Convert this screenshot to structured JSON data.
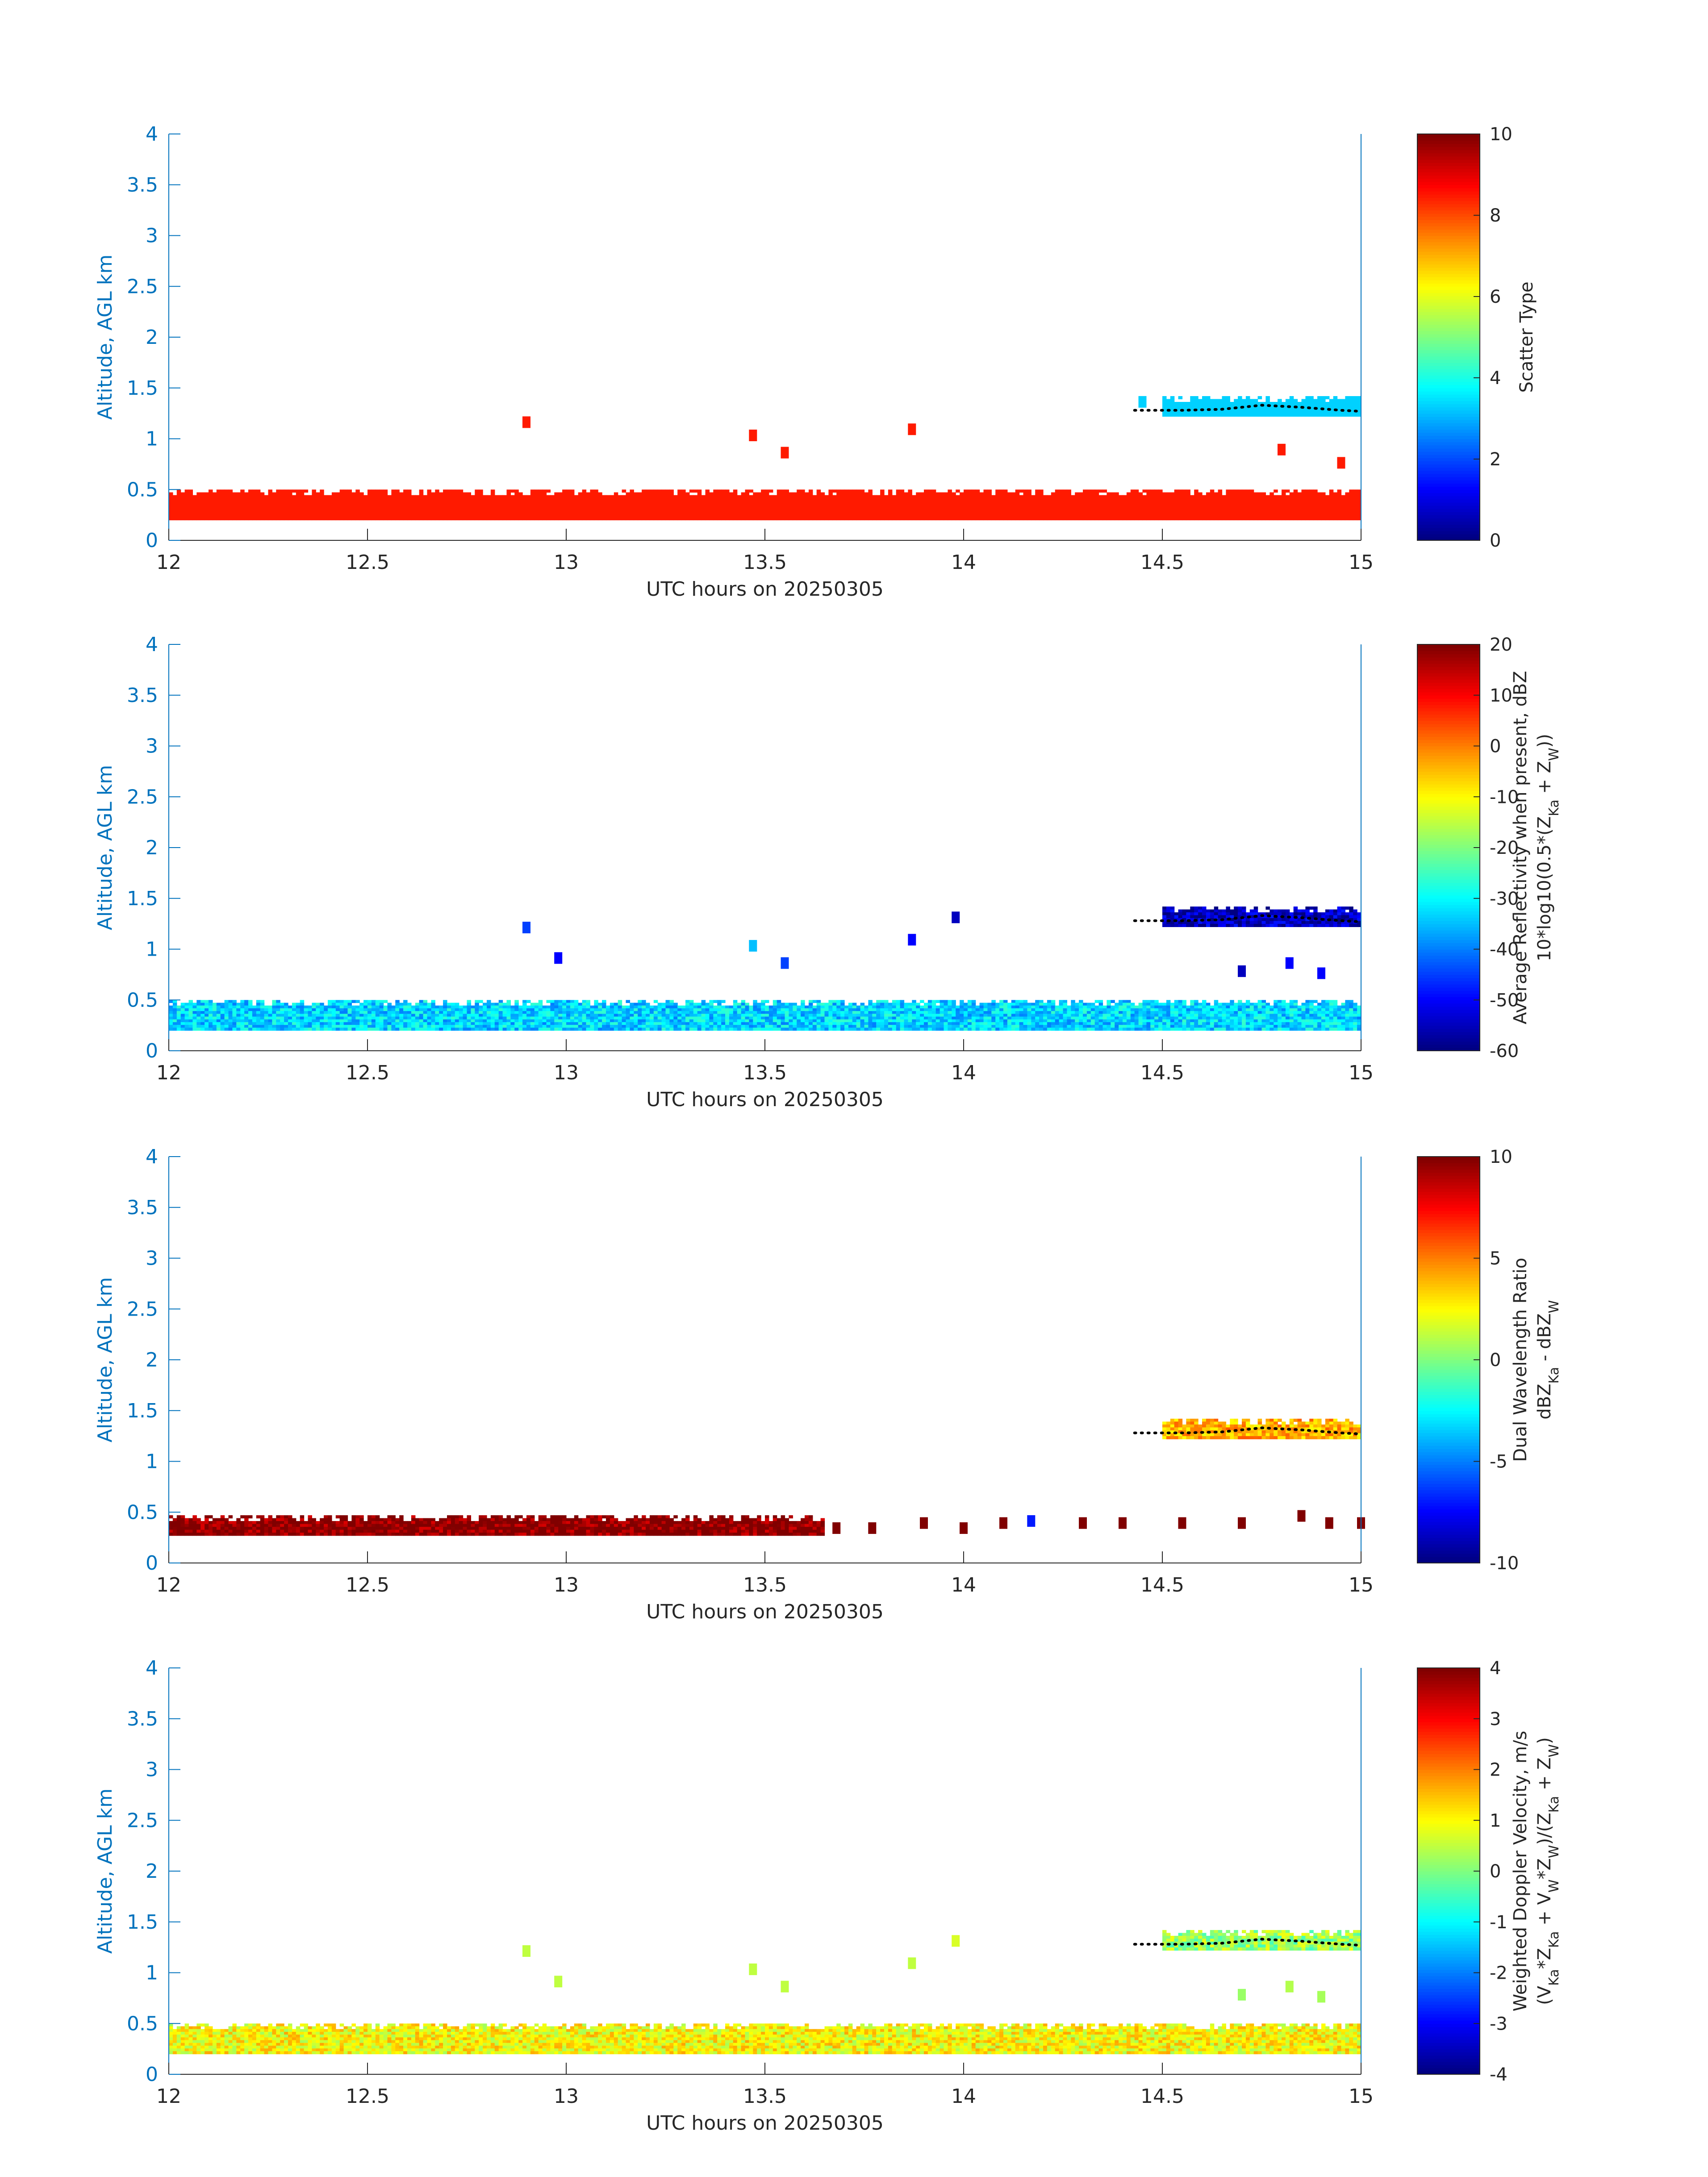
{
  "chart_data": [
    {
      "type": "heatmap",
      "xlabel": "UTC hours on 20250305",
      "ylabel": "Altitude, AGL km",
      "xlim": [
        12,
        15
      ],
      "ylim": [
        0,
        4
      ],
      "xticks": [
        "12",
        "12.5",
        "13",
        "13.5",
        "14",
        "14.5",
        "15"
      ],
      "yticks": [
        "0",
        "0.5",
        "1",
        "1.5",
        "2",
        "2.5",
        "3",
        "3.5",
        "4"
      ],
      "colorbar": {
        "label_lines": [
          "Scatter Type"
        ],
        "range": [
          0,
          10
        ],
        "ticks": [
          "0",
          "2",
          "4",
          "6",
          "8",
          "10"
        ],
        "colormap": "jet"
      },
      "layers": [
        {
          "x0": 12.0,
          "x1": 15.0,
          "y0": 0.2,
          "y1": 0.5,
          "value": 8.5
        },
        {
          "x0": 14.5,
          "x1": 15.0,
          "y0": 1.22,
          "y1": 1.42,
          "value": 3.3
        }
      ],
      "patches": [
        {
          "x": 12.9,
          "y": 1.15,
          "value": 8.5
        },
        {
          "x": 13.47,
          "y": 1.02,
          "value": 8.5
        },
        {
          "x": 13.55,
          "y": 0.85,
          "value": 8.5
        },
        {
          "x": 13.87,
          "y": 1.08,
          "value": 8.5
        },
        {
          "x": 14.45,
          "y": 1.35,
          "value": 3.3
        },
        {
          "x": 14.8,
          "y": 0.88,
          "value": 8.5
        },
        {
          "x": 14.95,
          "y": 0.75,
          "value": 8.5
        }
      ],
      "cloud_base_trace": {
        "x": [
          14.43,
          14.47,
          14.55,
          14.65,
          14.75,
          14.85,
          14.95,
          15.0
        ],
        "y": [
          1.28,
          1.28,
          1.28,
          1.29,
          1.33,
          1.31,
          1.28,
          1.27
        ]
      }
    },
    {
      "type": "heatmap",
      "xlabel": "UTC hours on 20250305",
      "ylabel": "Altitude, AGL km",
      "xlim": [
        12,
        15
      ],
      "ylim": [
        0,
        4
      ],
      "xticks": [
        "12",
        "12.5",
        "13",
        "13.5",
        "14",
        "14.5",
        "15"
      ],
      "yticks": [
        "0",
        "0.5",
        "1",
        "1.5",
        "2",
        "2.5",
        "3",
        "3.5",
        "4"
      ],
      "colorbar": {
        "label_lines": [
          "Average Reflectivity when present, dBZ",
          "10*log10(0.5*(Z_Ka + Z_W))"
        ],
        "range": [
          -60,
          20
        ],
        "ticks": [
          "-60",
          "-50",
          "-40",
          "-30",
          "-20",
          "-10",
          "0",
          "10",
          "20"
        ],
        "colormap": "jet"
      },
      "layers": [
        {
          "x0": 12.0,
          "x1": 15.0,
          "y0": 0.2,
          "y1": 0.5,
          "value": -33
        },
        {
          "x0": 14.5,
          "x1": 15.0,
          "y0": 1.22,
          "y1": 1.42,
          "value": -55
        }
      ],
      "patches": [
        {
          "x": 12.9,
          "y": 1.2,
          "value": -45
        },
        {
          "x": 12.98,
          "y": 0.9,
          "value": -50
        },
        {
          "x": 13.47,
          "y": 1.02,
          "value": -35
        },
        {
          "x": 13.55,
          "y": 0.85,
          "value": -45
        },
        {
          "x": 13.87,
          "y": 1.08,
          "value": -50
        },
        {
          "x": 13.98,
          "y": 1.3,
          "value": -55
        },
        {
          "x": 14.7,
          "y": 0.77,
          "value": -55
        },
        {
          "x": 14.82,
          "y": 0.85,
          "value": -50
        },
        {
          "x": 14.9,
          "y": 0.75,
          "value": -50
        }
      ],
      "cloud_base_trace": {
        "x": [
          14.43,
          14.47,
          14.55,
          14.65,
          14.75,
          14.85,
          14.95,
          15.0
        ],
        "y": [
          1.28,
          1.28,
          1.28,
          1.29,
          1.33,
          1.31,
          1.28,
          1.27
        ]
      }
    },
    {
      "type": "heatmap",
      "xlabel": "UTC hours on 20250305",
      "ylabel": "Altitude, AGL km",
      "xlim": [
        12,
        15
      ],
      "ylim": [
        0,
        4
      ],
      "xticks": [
        "12",
        "12.5",
        "13",
        "13.5",
        "14",
        "14.5",
        "15"
      ],
      "yticks": [
        "0",
        "0.5",
        "1",
        "1.5",
        "2",
        "2.5",
        "3",
        "3.5",
        "4"
      ],
      "colorbar": {
        "label_lines": [
          "Dual Wavelength Ratio",
          "dBZ_Ka - dBZ_W"
        ],
        "range": [
          -10,
          10
        ],
        "ticks": [
          "-10",
          "-5",
          "0",
          "5",
          "10"
        ],
        "colormap": "jet"
      },
      "layers": [
        {
          "x0": 12.0,
          "x1": 13.65,
          "y0": 0.27,
          "y1": 0.47,
          "value": 10
        },
        {
          "x0": 14.5,
          "x1": 15.0,
          "y0": 1.22,
          "y1": 1.42,
          "value": 4
        }
      ],
      "patches": [
        {
          "x": 13.68,
          "y": 0.33,
          "value": 10
        },
        {
          "x": 13.77,
          "y": 0.33,
          "value": 10
        },
        {
          "x": 13.9,
          "y": 0.38,
          "value": 10
        },
        {
          "x": 14.0,
          "y": 0.33,
          "value": 10
        },
        {
          "x": 14.1,
          "y": 0.38,
          "value": 10
        },
        {
          "x": 14.17,
          "y": 0.4,
          "value": -7
        },
        {
          "x": 14.3,
          "y": 0.38,
          "value": 10
        },
        {
          "x": 14.4,
          "y": 0.38,
          "value": 10
        },
        {
          "x": 14.55,
          "y": 0.38,
          "value": 10
        },
        {
          "x": 14.7,
          "y": 0.38,
          "value": 10
        },
        {
          "x": 14.85,
          "y": 0.45,
          "value": 10
        },
        {
          "x": 14.92,
          "y": 0.38,
          "value": 10
        },
        {
          "x": 15.0,
          "y": 0.38,
          "value": 10
        }
      ],
      "cloud_base_trace": {
        "x": [
          14.43,
          14.47,
          14.55,
          14.65,
          14.75,
          14.85,
          14.95,
          15.0
        ],
        "y": [
          1.28,
          1.28,
          1.28,
          1.29,
          1.33,
          1.31,
          1.28,
          1.27
        ]
      }
    },
    {
      "type": "heatmap",
      "xlabel": "UTC hours on 20250305",
      "ylabel": "Altitude, AGL km",
      "xlim": [
        12,
        15
      ],
      "ylim": [
        0,
        4
      ],
      "xticks": [
        "12",
        "12.5",
        "13",
        "13.5",
        "14",
        "14.5",
        "15"
      ],
      "yticks": [
        "0",
        "0.5",
        "1",
        "1.5",
        "2",
        "2.5",
        "3",
        "3.5",
        "4"
      ],
      "colorbar": {
        "label_lines": [
          "Weighted Doppler Velocity, m/s",
          "(V_Ka*Z_Ka + V_W*Z_W)/(Z_Ka + Z_W)"
        ],
        "range": [
          -4,
          4
        ],
        "ticks": [
          "-4",
          "-3",
          "-2",
          "-1",
          "0",
          "1",
          "2",
          "3",
          "4"
        ],
        "colormap": "jet"
      },
      "layers": [
        {
          "x0": 12.0,
          "x1": 15.0,
          "y0": 0.2,
          "y1": 0.5,
          "value": 1.0
        },
        {
          "x0": 14.5,
          "x1": 15.0,
          "y0": 1.22,
          "y1": 1.42,
          "value": 0.2
        }
      ],
      "patches": [
        {
          "x": 12.9,
          "y": 1.2,
          "value": 0.5
        },
        {
          "x": 12.98,
          "y": 0.9,
          "value": 0.5
        },
        {
          "x": 13.47,
          "y": 1.02,
          "value": 0.5
        },
        {
          "x": 13.55,
          "y": 0.85,
          "value": 0.5
        },
        {
          "x": 13.87,
          "y": 1.08,
          "value": 0.5
        },
        {
          "x": 13.98,
          "y": 1.3,
          "value": 0.7
        },
        {
          "x": 14.7,
          "y": 0.77,
          "value": 0.2
        },
        {
          "x": 14.82,
          "y": 0.85,
          "value": 0.4
        },
        {
          "x": 14.9,
          "y": 0.75,
          "value": 0.3
        }
      ],
      "cloud_base_trace": {
        "x": [
          14.43,
          14.47,
          14.55,
          14.65,
          14.75,
          14.85,
          14.95,
          15.0
        ],
        "y": [
          1.28,
          1.28,
          1.28,
          1.29,
          1.33,
          1.31,
          1.28,
          1.27
        ]
      }
    }
  ]
}
